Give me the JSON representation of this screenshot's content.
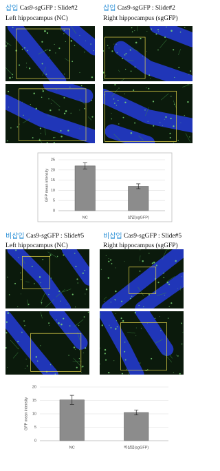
{
  "panels": [
    {
      "tag": "삽입",
      "slide": "Cas9-sgGFP : Slide#2",
      "left_label": "Left hippocampus (NC)",
      "right_label": "Right hippocampus (sgGFP)"
    },
    {
      "tag": "비삽입",
      "slide": "Cas9-sgGFP : Slide#5",
      "left_label": "Left hippocampus (NC)",
      "right_label": "Right hippocampus (sgGFP)"
    }
  ],
  "chart_data": [
    {
      "type": "bar",
      "ylabel": "GFP mean intensity",
      "categories": [
        "NC",
        "삽입(sgGFP)"
      ],
      "values": [
        22,
        12
      ],
      "errors": [
        1.5,
        1.2
      ],
      "color": "#8c8c8c",
      "ylim": [
        0,
        25
      ],
      "yticks": [
        0,
        5,
        10,
        15,
        20,
        25
      ],
      "grid": true
    },
    {
      "type": "bar",
      "ylabel": "GFP mean intensity",
      "categories": [
        "NC",
        "비삽입(sgGFP)"
      ],
      "values": [
        15.2,
        10.5
      ],
      "errors": [
        1.7,
        0.9
      ],
      "color": "#8c8c8c",
      "ylim": [
        0,
        20
      ],
      "yticks": [
        0,
        5,
        10,
        15,
        20
      ],
      "grid": true
    }
  ]
}
